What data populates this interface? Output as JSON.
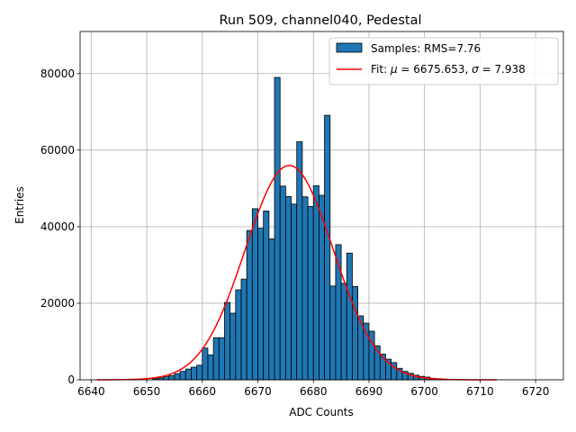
{
  "chart_data": {
    "type": "bar",
    "title": "Run 509, channel040, Pedestal",
    "xlabel": "ADC Counts",
    "ylabel": "Entries",
    "xlim": [
      6638,
      6725
    ],
    "ylim": [
      0,
      91000
    ],
    "xticks": [
      6640,
      6650,
      6660,
      6670,
      6680,
      6690,
      6700,
      6710,
      6720
    ],
    "yticks": [
      0,
      20000,
      40000,
      60000,
      80000
    ],
    "grid": true,
    "legend_position": "top-right",
    "bin_edges_start": 6641,
    "bin_width": 1,
    "histogram": {
      "name": "Samples: RMS=7.76",
      "color": "#1f77b4",
      "edgecolor": "#000000",
      "values": [
        0,
        0,
        0,
        0,
        0,
        0,
        0,
        0,
        0,
        0,
        300,
        500,
        800,
        1100,
        1600,
        2200,
        2800,
        3300,
        3800,
        8300,
        6500,
        11000,
        11000,
        20200,
        17400,
        23500,
        26300,
        39000,
        44700,
        39600,
        44100,
        36800,
        79000,
        50600,
        47900,
        45900,
        62200,
        47800,
        45300,
        50700,
        48200,
        69100,
        24500,
        35300,
        25200,
        33100,
        24400,
        16700,
        14800,
        12700,
        8900,
        6700,
        5400,
        4500,
        3000,
        2200,
        1700,
        1200,
        900,
        700,
        400,
        300,
        200,
        100,
        100,
        100,
        0,
        0,
        0,
        0,
        0,
        0
      ]
    },
    "fit": {
      "name_prefix": "Fit: ",
      "mu_symbol": "μ",
      "mu_text": " = 6675.653, ",
      "sigma_symbol": "σ",
      "sigma_text": " = 7.938",
      "color": "#ff0000",
      "mu": 6675.653,
      "sigma": 7.938,
      "amplitude": 56000,
      "x_range": [
        6641,
        6713
      ]
    }
  }
}
